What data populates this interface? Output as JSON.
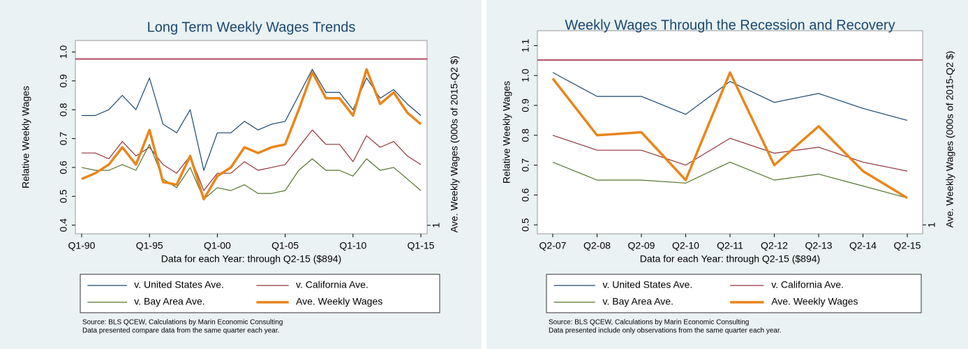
{
  "chart_data": [
    {
      "type": "line",
      "title": "Long Term Weekly Wages Trends",
      "x_label": "Data for each Year: through Q2-15 ($894)",
      "y_label": "Relative Weekly Wages",
      "y2_label": "Ave. Weekly Wages (000s of 2015-Q2 $)",
      "categories": [
        "Q1-90",
        null,
        null,
        null,
        null,
        "Q1-95",
        null,
        null,
        null,
        null,
        "Q1-00",
        null,
        null,
        null,
        null,
        "Q1-05",
        null,
        null,
        null,
        null,
        "Q1-10",
        null,
        null,
        null,
        null,
        "Q1-15"
      ],
      "series": [
        {
          "name": "v. United States Ave.",
          "color": "#1a476f",
          "values": [
            0.78,
            0.78,
            0.8,
            0.85,
            0.8,
            0.91,
            0.75,
            0.72,
            0.8,
            0.59,
            0.72,
            0.72,
            0.76,
            0.73,
            0.75,
            0.76,
            0.85,
            0.94,
            0.86,
            0.86,
            0.8,
            0.91,
            0.84,
            0.87,
            0.82,
            0.78
          ]
        },
        {
          "name": "v. California Ave.",
          "color": "#90353b",
          "values": [
            0.65,
            0.65,
            0.63,
            0.69,
            0.64,
            0.67,
            0.61,
            0.58,
            0.64,
            0.52,
            0.58,
            0.58,
            0.62,
            0.59,
            0.6,
            0.61,
            0.67,
            0.73,
            0.68,
            0.68,
            0.62,
            0.71,
            0.67,
            0.69,
            0.64,
            0.61
          ]
        },
        {
          "name": "v. Bay Area Ave.",
          "color": "#55752f",
          "values": [
            0.6,
            0.59,
            0.59,
            0.61,
            0.59,
            0.68,
            0.56,
            0.53,
            0.6,
            0.49,
            0.53,
            0.52,
            0.54,
            0.51,
            0.51,
            0.52,
            0.59,
            0.63,
            0.59,
            0.59,
            0.57,
            0.63,
            0.59,
            0.6,
            0.56,
            0.52
          ]
        },
        {
          "name": "Ave. Weekly Wages",
          "color": "#e8861a",
          "values": [
            0.56,
            0.58,
            0.61,
            0.67,
            0.61,
            0.73,
            0.55,
            0.54,
            0.64,
            0.49,
            0.57,
            0.6,
            0.67,
            0.65,
            0.67,
            0.68,
            0.8,
            0.93,
            0.84,
            0.84,
            0.78,
            0.94,
            0.82,
            0.86,
            0.79,
            0.75
          ]
        }
      ],
      "ylim": [
        0.37,
        1.04
      ],
      "yticks": [
        0.4,
        0.5,
        0.6,
        0.7,
        0.8,
        0.9,
        {
          "value": 1.0,
          "label": "1.0"
        }
      ],
      "y2lim": [
        0.97,
        1.65
      ],
      "y2ticks": [
        1
      ],
      "hline": {
        "value": 0.976,
        "color": "#9b1c3a"
      },
      "source_lines": [
        "Source: BLS QCEW, Calculations by Marin Economic Consulting",
        "Data presented compare data from the same quarter each year."
      ]
    },
    {
      "type": "line",
      "title": "Weekly Wages Through the Recession and Recovery",
      "x_label": "Data for each Year: through Q2-15 ($894)",
      "y_label": "Relative Weekly Wages",
      "y2_label": "Ave. Weekly Wages (000s of 2015-Q2 $)",
      "categories": [
        "Q2-07",
        "Q2-08",
        "Q2-09",
        "Q2-10",
        "Q2-11",
        "Q2-12",
        "Q2-13",
        "Q2-14",
        "Q2-15"
      ],
      "series": [
        {
          "name": "v. United States Ave.",
          "color": "#1a476f",
          "values": [
            1.01,
            0.93,
            0.93,
            0.87,
            0.98,
            0.91,
            0.94,
            0.89,
            0.85
          ]
        },
        {
          "name": "v. California Ave.",
          "color": "#90353b",
          "values": [
            0.8,
            0.75,
            0.75,
            0.7,
            0.79,
            0.74,
            0.76,
            0.71,
            0.68
          ]
        },
        {
          "name": "v. Bay Area Ave.",
          "color": "#55752f",
          "values": [
            0.71,
            0.65,
            0.65,
            0.64,
            0.71,
            0.65,
            0.67,
            0.63,
            0.59
          ]
        },
        {
          "name": "Ave. Weekly Wages",
          "color": "#e8861a",
          "values": [
            0.99,
            0.8,
            0.81,
            0.65,
            1.01,
            0.7,
            0.83,
            0.68,
            0.59
          ]
        }
      ],
      "ylim": [
        0.47,
        1.15
      ],
      "yticks": [
        0.5,
        0.6,
        0.7,
        0.8,
        0.9,
        {
          "value": 1.0,
          "label": "1.0"
        },
        1.1
      ],
      "y2lim": [
        0.97,
        1.65
      ],
      "y2ticks": [
        1
      ],
      "hline": {
        "value": 1.052,
        "color": "#9b1c3a"
      },
      "source_lines": [
        "Source: BLS QCEW, Calculations by Marin Economic Consulting",
        "Data presented include only observations from the same quarter each year."
      ]
    }
  ]
}
